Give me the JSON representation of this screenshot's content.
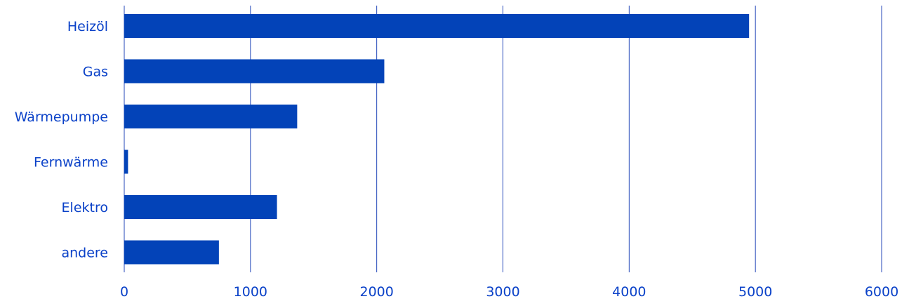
{
  "chart_data": {
    "type": "bar",
    "orientation": "horizontal",
    "categories": [
      "Heizöl",
      "Gas",
      "Wärmepumpe",
      "Fernwärme",
      "Elektro",
      "andere"
    ],
    "values": [
      4950,
      2060,
      1370,
      30,
      1210,
      750
    ],
    "xlim": [
      0,
      6000
    ],
    "xticks": [
      0,
      1000,
      2000,
      3000,
      4000,
      5000,
      6000
    ],
    "grid": true,
    "title": "",
    "xlabel": "",
    "ylabel": ""
  },
  "colors": {
    "bar": "#0343b8",
    "grid": "#2447b9",
    "text": "#0a41c8"
  }
}
